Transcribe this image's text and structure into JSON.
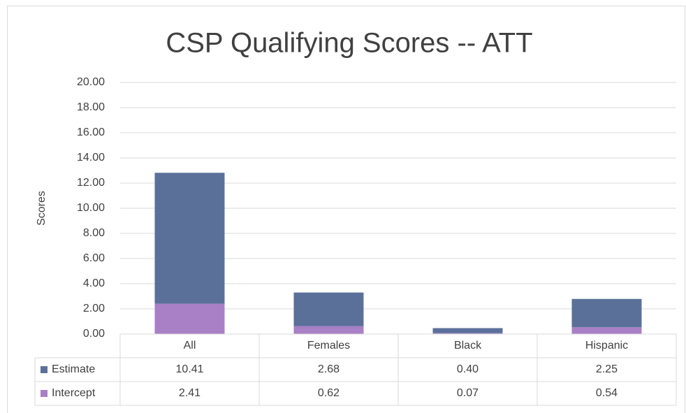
{
  "chart_data": {
    "type": "stacked_bar",
    "title": "CSP Qualifying Scores -- ATT",
    "y_label": "Scores",
    "categories": [
      "All",
      "Females",
      "Black",
      "Hispanic"
    ],
    "series": [
      {
        "name": "Intercept",
        "color": "#a97fc6",
        "values": [
          2.41,
          0.62,
          0.07,
          0.54
        ],
        "value_labels": [
          "2.41",
          "0.62",
          "0.07",
          "0.54"
        ]
      },
      {
        "name": "Estimate",
        "color": "#5b7099",
        "values": [
          10.41,
          2.68,
          0.4,
          2.25
        ],
        "value_labels": [
          "10.41",
          "2.68",
          "0.40",
          "2.25"
        ]
      }
    ],
    "ylim": [
      0,
      20
    ],
    "yticks": [
      {
        "value": 0,
        "label": "0.00"
      },
      {
        "value": 2,
        "label": "2.00"
      },
      {
        "value": 4,
        "label": "4.00"
      },
      {
        "value": 6,
        "label": "6.00"
      },
      {
        "value": 8,
        "label": "8.00"
      },
      {
        "value": 10,
        "label": "10.00"
      },
      {
        "value": 12,
        "label": "12.00"
      },
      {
        "value": 14,
        "label": "14.00"
      },
      {
        "value": 16,
        "label": "16.00"
      },
      {
        "value": 18,
        "label": "18.00"
      },
      {
        "value": 20,
        "label": "20.00"
      }
    ],
    "grid": true,
    "data_table": true
  }
}
